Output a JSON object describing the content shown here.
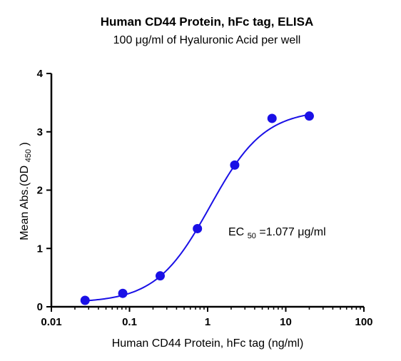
{
  "chart_data": {
    "type": "scatter",
    "title": "Human CD44 Protein, hFc tag, ELISA",
    "subtitle": "100 μg/ml of Hyaluronic Acid per well",
    "xlabel": "Human CD44 Protein, hFc tag (ng/ml)",
    "ylabel_main": "Mean Abs.(OD",
    "ylabel_sub": "450",
    "ylabel_close": ")",
    "x_scale": "log",
    "xlim": [
      0.01,
      100
    ],
    "ylim": [
      0,
      4
    ],
    "x_ticks": [
      0.01,
      0.1,
      1,
      10,
      100
    ],
    "x_tick_labels": [
      "0.01",
      "0.1",
      "1",
      "10",
      "100"
    ],
    "y_ticks": [
      0,
      1,
      2,
      3,
      4
    ],
    "y_tick_labels": [
      "0",
      "1",
      "2",
      "3",
      "4"
    ],
    "grid": false,
    "series": [
      {
        "color": "#1a10e6",
        "x": [
          0.027,
          0.082,
          0.247,
          0.74,
          2.22,
          6.67,
          20
        ],
        "y": [
          0.11,
          0.23,
          0.53,
          1.34,
          2.43,
          3.23,
          3.27
        ]
      }
    ],
    "fit": {
      "type": "4PL",
      "color": "#1a10e6",
      "bottom": 0.07,
      "top": 3.38,
      "ec50": 1.077,
      "hill": 1.25
    },
    "annotation": {
      "prefix": "EC",
      "sub": "50",
      "suffix": "=1.077 μg/ml"
    }
  }
}
